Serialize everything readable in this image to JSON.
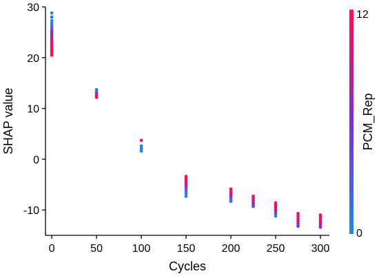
{
  "chart_data": {
    "type": "scatter",
    "title": "",
    "xlabel": "Cycles",
    "ylabel": "SHAP value",
    "xlim": [
      -7,
      310
    ],
    "ylim": [
      -15,
      30
    ],
    "xticks": [
      0,
      50,
      100,
      150,
      200,
      250,
      300
    ],
    "yticks": [
      -10,
      0,
      10,
      20,
      30
    ],
    "grid": false,
    "colorbar": {
      "label": "PCM_Rep",
      "min": 0,
      "max": 12,
      "tick_labels": [
        "0",
        "12"
      ],
      "low_color": "#1e88e5",
      "high_color": "#ff0d57"
    },
    "points": [
      {
        "x": 0,
        "y": 28.8,
        "c": 0
      },
      {
        "x": 0,
        "y": 28.0,
        "c": 1
      },
      {
        "x": 0,
        "y": 27.3,
        "c": 0
      },
      {
        "x": 0,
        "y": 26.8,
        "c": 1
      },
      {
        "x": 0,
        "y": 26.3,
        "c": 2
      },
      {
        "x": 0,
        "y": 25.8,
        "c": 3
      },
      {
        "x": 0,
        "y": 25.3,
        "c": 5
      },
      {
        "x": 0,
        "y": 24.9,
        "c": 6
      },
      {
        "x": 0,
        "y": 24.5,
        "c": 7
      },
      {
        "x": 0,
        "y": 24.1,
        "c": 8
      },
      {
        "x": 0,
        "y": 23.7,
        "c": 9
      },
      {
        "x": 0,
        "y": 23.3,
        "c": 10
      },
      {
        "x": 0,
        "y": 22.9,
        "c": 10
      },
      {
        "x": 0,
        "y": 22.5,
        "c": 11
      },
      {
        "x": 0,
        "y": 22.1,
        "c": 11
      },
      {
        "x": 0,
        "y": 21.7,
        "c": 12
      },
      {
        "x": 0,
        "y": 21.3,
        "c": 12
      },
      {
        "x": 0,
        "y": 20.9,
        "c": 12
      },
      {
        "x": 0,
        "y": 20.5,
        "c": 12
      },
      {
        "x": 50,
        "y": 13.7,
        "c": 1
      },
      {
        "x": 50,
        "y": 13.2,
        "c": 3
      },
      {
        "x": 50,
        "y": 12.8,
        "c": 9
      },
      {
        "x": 50,
        "y": 12.5,
        "c": 11
      },
      {
        "x": 50,
        "y": 12.2,
        "c": 12
      },
      {
        "x": 100,
        "y": 3.7,
        "c": 12
      },
      {
        "x": 100,
        "y": 2.6,
        "c": 0
      },
      {
        "x": 100,
        "y": 2.1,
        "c": 1
      },
      {
        "x": 100,
        "y": 1.6,
        "c": 0
      },
      {
        "x": 150,
        "y": -3.4,
        "c": 12
      },
      {
        "x": 150,
        "y": -3.8,
        "c": 12
      },
      {
        "x": 150,
        "y": -4.2,
        "c": 11
      },
      {
        "x": 150,
        "y": -4.6,
        "c": 10
      },
      {
        "x": 150,
        "y": -5.0,
        "c": 9
      },
      {
        "x": 150,
        "y": -5.4,
        "c": 7
      },
      {
        "x": 150,
        "y": -5.8,
        "c": 4
      },
      {
        "x": 150,
        "y": -6.3,
        "c": 2
      },
      {
        "x": 150,
        "y": -6.8,
        "c": 1
      },
      {
        "x": 150,
        "y": -7.3,
        "c": 0
      },
      {
        "x": 200,
        "y": -5.9,
        "c": 12
      },
      {
        "x": 200,
        "y": -6.3,
        "c": 11
      },
      {
        "x": 200,
        "y": -6.7,
        "c": 10
      },
      {
        "x": 200,
        "y": -7.1,
        "c": 9
      },
      {
        "x": 200,
        "y": -7.5,
        "c": 7
      },
      {
        "x": 200,
        "y": -8.0,
        "c": 3
      },
      {
        "x": 200,
        "y": -8.3,
        "c": 1
      },
      {
        "x": 225,
        "y": -7.3,
        "c": 12
      },
      {
        "x": 225,
        "y": -7.7,
        "c": 11
      },
      {
        "x": 225,
        "y": -8.1,
        "c": 9
      },
      {
        "x": 225,
        "y": -8.5,
        "c": 8
      },
      {
        "x": 225,
        "y": -8.9,
        "c": 6
      },
      {
        "x": 225,
        "y": -9.3,
        "c": 5
      },
      {
        "x": 250,
        "y": -8.6,
        "c": 12
      },
      {
        "x": 250,
        "y": -9.0,
        "c": 11
      },
      {
        "x": 250,
        "y": -9.4,
        "c": 10
      },
      {
        "x": 250,
        "y": -9.8,
        "c": 10
      },
      {
        "x": 250,
        "y": -10.2,
        "c": 9
      },
      {
        "x": 250,
        "y": -10.7,
        "c": 4
      },
      {
        "x": 250,
        "y": -11.2,
        "c": 1
      },
      {
        "x": 275,
        "y": -10.7,
        "c": 12
      },
      {
        "x": 275,
        "y": -11.2,
        "c": 11
      },
      {
        "x": 275,
        "y": -11.7,
        "c": 10
      },
      {
        "x": 275,
        "y": -12.2,
        "c": 8
      },
      {
        "x": 275,
        "y": -12.7,
        "c": 7
      },
      {
        "x": 275,
        "y": -13.2,
        "c": 6
      },
      {
        "x": 300,
        "y": -11.0,
        "c": 12
      },
      {
        "x": 300,
        "y": -11.4,
        "c": 12
      },
      {
        "x": 300,
        "y": -11.8,
        "c": 11
      },
      {
        "x": 300,
        "y": -12.2,
        "c": 10
      },
      {
        "x": 300,
        "y": -12.6,
        "c": 9
      },
      {
        "x": 300,
        "y": -13.0,
        "c": 8
      },
      {
        "x": 300,
        "y": -13.4,
        "c": 7
      }
    ]
  }
}
